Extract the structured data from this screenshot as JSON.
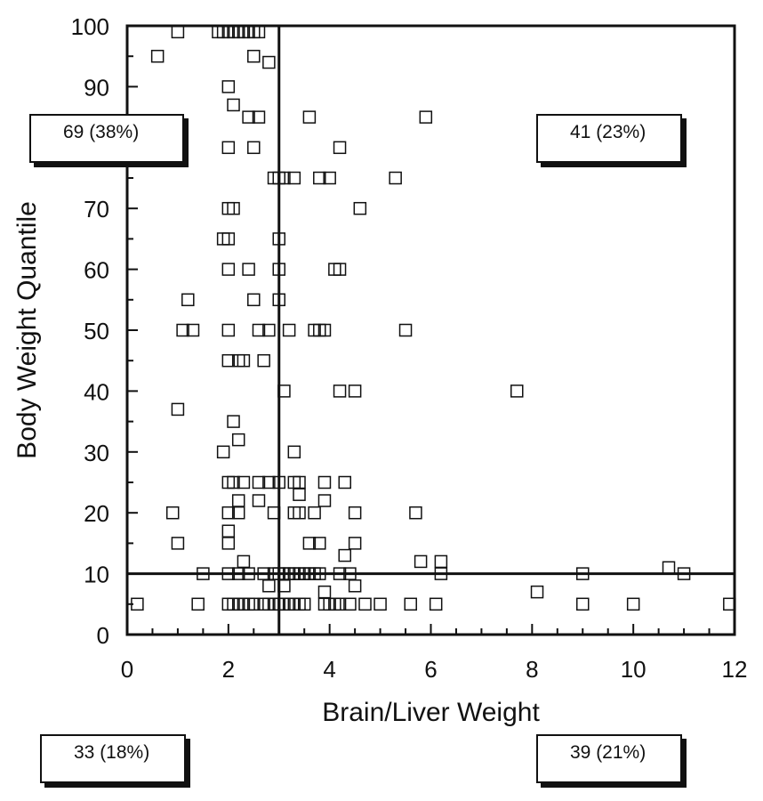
{
  "chart_data": {
    "type": "scatter",
    "xlabel": "Brain/Liver Weight",
    "ylabel": "Body Weight Quantile",
    "xlim": [
      0,
      12
    ],
    "ylim": [
      0,
      100
    ],
    "xticks": [
      0,
      2,
      4,
      6,
      8,
      10,
      12
    ],
    "yticks": [
      0,
      10,
      20,
      30,
      40,
      50,
      60,
      70,
      80,
      90,
      100
    ],
    "xtick_labels": [
      "0",
      "2",
      "4",
      "6",
      "8",
      "10",
      "12"
    ],
    "ytick_labels": [
      "0",
      "10",
      "20",
      "30",
      "40",
      "50",
      "60",
      "70",
      "80",
      "90",
      "100"
    ],
    "marker": "open-square",
    "reference_lines": {
      "x": 3,
      "y": 10
    },
    "series": [
      {
        "points": [
          [
            1.0,
            99
          ],
          [
            1.8,
            99
          ],
          [
            1.9,
            99
          ],
          [
            2.0,
            99
          ],
          [
            2.1,
            99
          ],
          [
            2.2,
            99
          ],
          [
            2.3,
            99
          ],
          [
            2.4,
            99
          ],
          [
            2.5,
            99
          ],
          [
            2.6,
            99
          ],
          [
            0.6,
            95
          ],
          [
            2.5,
            95
          ],
          [
            2.8,
            94
          ],
          [
            2.0,
            90
          ],
          [
            2.1,
            87
          ],
          [
            2.4,
            85
          ],
          [
            2.6,
            85
          ],
          [
            3.6,
            85
          ],
          [
            5.9,
            85
          ],
          [
            2.0,
            80
          ],
          [
            2.5,
            80
          ],
          [
            4.2,
            80
          ],
          [
            2.9,
            75
          ],
          [
            3.0,
            75
          ],
          [
            3.1,
            75
          ],
          [
            3.3,
            75
          ],
          [
            3.8,
            75
          ],
          [
            4.0,
            75
          ],
          [
            5.3,
            75
          ],
          [
            2.0,
            70
          ],
          [
            2.1,
            70
          ],
          [
            4.6,
            70
          ],
          [
            1.9,
            65
          ],
          [
            2.0,
            65
          ],
          [
            3.0,
            65
          ],
          [
            2.0,
            60
          ],
          [
            2.4,
            60
          ],
          [
            3.0,
            60
          ],
          [
            4.1,
            60
          ],
          [
            4.2,
            60
          ],
          [
            1.2,
            55
          ],
          [
            2.5,
            55
          ],
          [
            3.0,
            55
          ],
          [
            1.1,
            50
          ],
          [
            1.3,
            50
          ],
          [
            2.0,
            50
          ],
          [
            2.6,
            50
          ],
          [
            2.8,
            50
          ],
          [
            3.2,
            50
          ],
          [
            3.7,
            50
          ],
          [
            3.8,
            50
          ],
          [
            3.9,
            50
          ],
          [
            5.5,
            50
          ],
          [
            2.0,
            45
          ],
          [
            2.2,
            45
          ],
          [
            2.3,
            45
          ],
          [
            2.7,
            45
          ],
          [
            3.1,
            40
          ],
          [
            4.2,
            40
          ],
          [
            4.5,
            40
          ],
          [
            7.7,
            40
          ],
          [
            1.0,
            37
          ],
          [
            2.1,
            35
          ],
          [
            2.2,
            32
          ],
          [
            1.9,
            30
          ],
          [
            3.3,
            30
          ],
          [
            2.0,
            25
          ],
          [
            2.1,
            25
          ],
          [
            2.3,
            25
          ],
          [
            2.6,
            25
          ],
          [
            2.8,
            25
          ],
          [
            3.0,
            25
          ],
          [
            3.3,
            25
          ],
          [
            3.4,
            25
          ],
          [
            3.9,
            25
          ],
          [
            4.3,
            25
          ],
          [
            3.4,
            23
          ],
          [
            2.2,
            22
          ],
          [
            2.6,
            22
          ],
          [
            3.9,
            22
          ],
          [
            0.9,
            20
          ],
          [
            2.0,
            20
          ],
          [
            2.2,
            20
          ],
          [
            2.9,
            20
          ],
          [
            3.3,
            20
          ],
          [
            3.4,
            20
          ],
          [
            3.7,
            20
          ],
          [
            4.5,
            20
          ],
          [
            5.7,
            20
          ],
          [
            2.0,
            17
          ],
          [
            1.0,
            15
          ],
          [
            2.0,
            15
          ],
          [
            3.6,
            15
          ],
          [
            3.8,
            15
          ],
          [
            4.5,
            15
          ],
          [
            4.3,
            13
          ],
          [
            2.3,
            12
          ],
          [
            5.8,
            12
          ],
          [
            6.2,
            12
          ],
          [
            10.7,
            11
          ],
          [
            1.5,
            10
          ],
          [
            2.0,
            10
          ],
          [
            2.2,
            10
          ],
          [
            2.4,
            10
          ],
          [
            2.7,
            10
          ],
          [
            2.9,
            10
          ],
          [
            3.0,
            10
          ],
          [
            3.1,
            10
          ],
          [
            3.2,
            10
          ],
          [
            3.3,
            10
          ],
          [
            3.4,
            10
          ],
          [
            3.5,
            10
          ],
          [
            3.6,
            10
          ],
          [
            3.7,
            10
          ],
          [
            3.8,
            10
          ],
          [
            4.2,
            10
          ],
          [
            4.4,
            10
          ],
          [
            6.2,
            10
          ],
          [
            9.0,
            10
          ],
          [
            11.0,
            10
          ],
          [
            2.8,
            8
          ],
          [
            3.1,
            8
          ],
          [
            4.5,
            8
          ],
          [
            3.9,
            7
          ],
          [
            8.1,
            7
          ],
          [
            0.2,
            5
          ],
          [
            1.4,
            5
          ],
          [
            2.0,
            5
          ],
          [
            2.1,
            5
          ],
          [
            2.2,
            5
          ],
          [
            2.3,
            5
          ],
          [
            2.4,
            5
          ],
          [
            2.5,
            5
          ],
          [
            2.7,
            5
          ],
          [
            2.8,
            5
          ],
          [
            2.9,
            5
          ],
          [
            3.0,
            5
          ],
          [
            3.1,
            5
          ],
          [
            3.2,
            5
          ],
          [
            3.3,
            5
          ],
          [
            3.4,
            5
          ],
          [
            3.5,
            5
          ],
          [
            3.9,
            5
          ],
          [
            4.0,
            5
          ],
          [
            4.1,
            5
          ],
          [
            4.2,
            5
          ],
          [
            4.4,
            5
          ],
          [
            4.7,
            5
          ],
          [
            5.0,
            5
          ],
          [
            5.6,
            5
          ],
          [
            6.1,
            5
          ],
          [
            9.0,
            5
          ],
          [
            10.0,
            5
          ],
          [
            11.9,
            5
          ]
        ]
      }
    ],
    "annotations": [
      {
        "text": "69 (38%)",
        "quadrant": "upper-left"
      },
      {
        "text": "41 (23%)",
        "quadrant": "upper-right"
      },
      {
        "text": "33 (18%)",
        "quadrant": "lower-left"
      },
      {
        "text": "39 (21%)",
        "quadrant": "lower-right"
      }
    ]
  }
}
